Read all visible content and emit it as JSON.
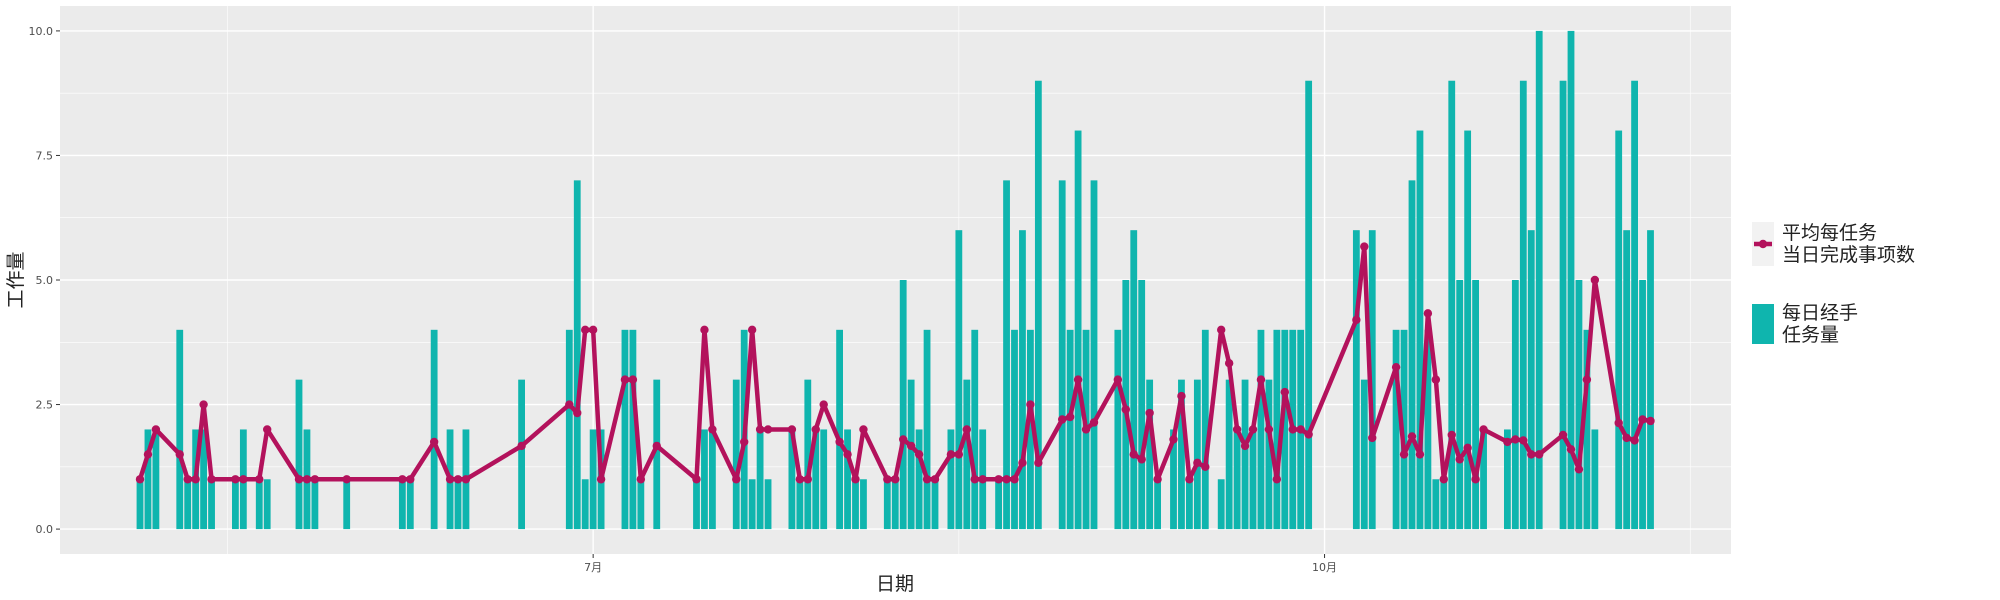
{
  "chart_data": {
    "type": "bar",
    "x_label": "日期",
    "y_label": "工作量",
    "categories": [
      null,
      null,
      null,
      null,
      null,
      null,
      null,
      null,
      null,
      null,
      null,
      null,
      null,
      null,
      null,
      null,
      null,
      null,
      null,
      null,
      null,
      null,
      null,
      null,
      null,
      null,
      null,
      null,
      null,
      null,
      null,
      null,
      null,
      null,
      null,
      null,
      null,
      null,
      null,
      null,
      null,
      null,
      null,
      null,
      null,
      null,
      null,
      null,
      null,
      null,
      null,
      null,
      null,
      null,
      null,
      null,
      null,
      "7月",
      null,
      null,
      null,
      null,
      null,
      null,
      null,
      null,
      null,
      null,
      null,
      null,
      null,
      null,
      null,
      null,
      null,
      null,
      null,
      null,
      null,
      null,
      null,
      null,
      null,
      null,
      null,
      null,
      null,
      null,
      null,
      null,
      null,
      null,
      null,
      null,
      null,
      null,
      null,
      null,
      null,
      null,
      null,
      null,
      null,
      null,
      null,
      null,
      null,
      null,
      null,
      null,
      null,
      null,
      null,
      null,
      null,
      null,
      null,
      null,
      null,
      null,
      null,
      null,
      null,
      null,
      null,
      null,
      null,
      null,
      null,
      null,
      null,
      null,
      null,
      null,
      null,
      null,
      null,
      null,
      null,
      null,
      null,
      null,
      null,
      null,
      null,
      null,
      null,
      null,
      null,
      "10月",
      null,
      null,
      null,
      null,
      null,
      null,
      null,
      null,
      null,
      null,
      null,
      null,
      null,
      null,
      null,
      null,
      null,
      null,
      null,
      null,
      null,
      null,
      null,
      null,
      null,
      null,
      null,
      null,
      null,
      null,
      null,
      null,
      null,
      null,
      null,
      null,
      null,
      null,
      null,
      null,
      null
    ],
    "ylim": [
      -0.5,
      10.5
    ],
    "yticks": [
      {
        "value": 0,
        "label": "0.0"
      },
      {
        "value": 2.5,
        "label": "2.5"
      },
      {
        "value": 5,
        "label": "5.0"
      },
      {
        "value": 7.5,
        "label": "7.5"
      },
      {
        "value": 10,
        "label": "10.0"
      }
    ],
    "grid": true,
    "legend": "right",
    "series": [
      {
        "name": "平均每任务\n当日完成事项数",
        "type": "line",
        "color": "#b3125c",
        "values": [
          1,
          1.5,
          2,
          null,
          null,
          1.5,
          1,
          1,
          2.5,
          1,
          null,
          null,
          1,
          1,
          null,
          1,
          2,
          null,
          null,
          null,
          1,
          1,
          1,
          null,
          null,
          null,
          1,
          null,
          null,
          null,
          null,
          null,
          null,
          1,
          1,
          null,
          null,
          1.75,
          null,
          1,
          1,
          1,
          null,
          null,
          null,
          null,
          null,
          null,
          1.67,
          null,
          null,
          null,
          null,
          null,
          2.5,
          2.33,
          4,
          4,
          1,
          null,
          null,
          3,
          3,
          1,
          null,
          1.67,
          null,
          null,
          null,
          null,
          1,
          4,
          2,
          null,
          null,
          1,
          1.75,
          4,
          2,
          2,
          null,
          null,
          2,
          1,
          1,
          2,
          2.5,
          null,
          1.75,
          1.5,
          1,
          2,
          null,
          null,
          1,
          1,
          1.8,
          1.67,
          1.5,
          1,
          1,
          null,
          1.5,
          1.5,
          2,
          1,
          1,
          null,
          1,
          1,
          1,
          1.33,
          2.5,
          1.33,
          null,
          null,
          2.2,
          2.25,
          3,
          2,
          2.14,
          null,
          null,
          3,
          2.4,
          1.5,
          1.4,
          2.33,
          1,
          null,
          1.8,
          2.67,
          1,
          1.33,
          1.25,
          null,
          4,
          3.33,
          2,
          1.67,
          2,
          3,
          2,
          1,
          2.75,
          2,
          2,
          1.9,
          null,
          null,
          null,
          null,
          null,
          4.2,
          5.67,
          1.83,
          null,
          null,
          3.25,
          1.5,
          1.86,
          1.5,
          4.33,
          3,
          1,
          1.89,
          1.4,
          1.63,
          1,
          2,
          null,
          null,
          1.75,
          1.8,
          1.78,
          1.5,
          1.5,
          null,
          null,
          1.89,
          1.6,
          1.2,
          3,
          5,
          null,
          null,
          2.13,
          1.83,
          1.78,
          2.2,
          2.17
        ]
      },
      {
        "name": "每日经手\n任务量",
        "type": "bar",
        "color": "#0fb5ae",
        "values": [
          1,
          2,
          2,
          null,
          null,
          4,
          1,
          2,
          2,
          1,
          null,
          null,
          1,
          2,
          null,
          1,
          1,
          null,
          null,
          null,
          3,
          2,
          1,
          null,
          null,
          null,
          1,
          null,
          null,
          null,
          null,
          null,
          null,
          1,
          1,
          null,
          null,
          4,
          null,
          2,
          1,
          2,
          null,
          null,
          null,
          null,
          null,
          null,
          3,
          null,
          null,
          null,
          null,
          null,
          4,
          7,
          1,
          2,
          2,
          null,
          null,
          4,
          4,
          1,
          null,
          3,
          null,
          null,
          null,
          null,
          1,
          2,
          2,
          null,
          null,
          3,
          4,
          1,
          2,
          1,
          null,
          null,
          2,
          1,
          3,
          2,
          2,
          null,
          4,
          2,
          1,
          1,
          null,
          null,
          1,
          1,
          5,
          3,
          2,
          4,
          1,
          null,
          2,
          6,
          3,
          4,
          2,
          null,
          1,
          7,
          4,
          6,
          4,
          9,
          null,
          null,
          7,
          4,
          8,
          4,
          7,
          null,
          null,
          4,
          5,
          6,
          5,
          3,
          1,
          null,
          2,
          3,
          1,
          3,
          4,
          null,
          1,
          3,
          2,
          3,
          2,
          4,
          3,
          4,
          4,
          4,
          4,
          9,
          null,
          null,
          null,
          null,
          null,
          6,
          3,
          6,
          null,
          null,
          4,
          4,
          7,
          8,
          4,
          1,
          1,
          9,
          5,
          8,
          5,
          2,
          null,
          null,
          2,
          5,
          9,
          6,
          10,
          null,
          null,
          9,
          10,
          5,
          4,
          2,
          null,
          null,
          8,
          6,
          9,
          5,
          6
        ]
      }
    ]
  }
}
